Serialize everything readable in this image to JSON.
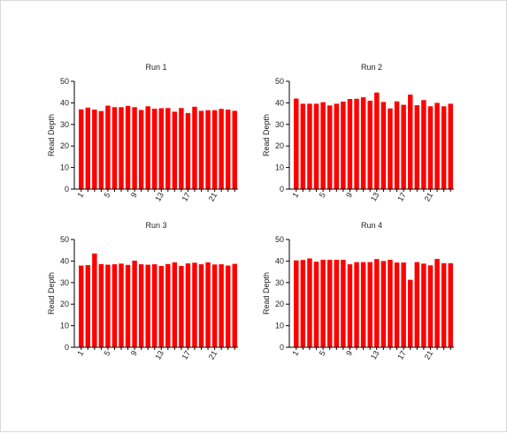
{
  "colors": {
    "bar": "#ff0000",
    "axis": "#000000",
    "background": "#ffffff",
    "border": "#d9d9d9"
  },
  "chart_data": [
    {
      "type": "bar",
      "title": "Run 1",
      "ylabel": "Read Depth",
      "ylim": [
        0,
        50
      ],
      "yticks": [
        0,
        10,
        20,
        30,
        40,
        50
      ],
      "x": [
        1,
        2,
        3,
        4,
        5,
        6,
        7,
        8,
        9,
        10,
        11,
        12,
        13,
        14,
        15,
        16,
        17,
        18,
        19,
        20,
        21,
        22,
        23,
        24
      ],
      "xtick_labels": [
        "1",
        "5",
        "9",
        "13",
        "17",
        "21"
      ],
      "values": [
        37.0,
        37.8,
        36.9,
        36.2,
        38.7,
        38.0,
        38.0,
        38.6,
        38.0,
        36.7,
        38.4,
        37.3,
        37.5,
        37.6,
        35.9,
        37.6,
        35.3,
        38.2,
        36.3,
        36.6,
        36.6,
        37.2,
        36.9,
        36.3
      ]
    },
    {
      "type": "bar",
      "title": "Run 2",
      "ylabel": "Read Depth",
      "ylim": [
        0,
        50
      ],
      "yticks": [
        0,
        10,
        20,
        30,
        40,
        50
      ],
      "x": [
        1,
        2,
        3,
        4,
        5,
        6,
        7,
        8,
        9,
        10,
        11,
        12,
        13,
        14,
        15,
        16,
        17,
        18,
        19,
        20,
        21,
        22,
        23,
        24
      ],
      "xtick_labels": [
        "1",
        "5",
        "9",
        "13",
        "17",
        "21"
      ],
      "values": [
        42.0,
        39.6,
        39.6,
        39.6,
        40.3,
        38.8,
        39.6,
        40.6,
        41.8,
        41.9,
        42.6,
        41.0,
        44.8,
        40.4,
        37.4,
        40.7,
        39.1,
        43.8,
        38.9,
        41.3,
        38.4,
        40.0,
        38.4,
        39.6
      ]
    },
    {
      "type": "bar",
      "title": "Run 3",
      "ylabel": "Read Depth",
      "ylim": [
        0,
        50
      ],
      "yticks": [
        0,
        10,
        20,
        30,
        40,
        50
      ],
      "x": [
        1,
        2,
        3,
        4,
        5,
        6,
        7,
        8,
        9,
        10,
        11,
        12,
        13,
        14,
        15,
        16,
        17,
        18,
        19,
        20,
        21,
        22,
        23,
        24
      ],
      "xtick_labels": [
        "1",
        "5",
        "9",
        "13",
        "17",
        "21"
      ],
      "values": [
        37.9,
        38.1,
        43.5,
        38.6,
        38.3,
        38.5,
        38.8,
        38.2,
        40.2,
        38.5,
        38.3,
        38.5,
        37.7,
        38.6,
        39.4,
        37.7,
        38.9,
        39.2,
        38.5,
        39.4,
        38.4,
        38.5,
        37.9,
        38.7
      ]
    },
    {
      "type": "bar",
      "title": "Run 4",
      "ylabel": "Read Depth",
      "ylim": [
        0,
        50
      ],
      "yticks": [
        0,
        10,
        20,
        30,
        40,
        50
      ],
      "x": [
        1,
        2,
        3,
        4,
        5,
        6,
        7,
        8,
        9,
        10,
        11,
        12,
        13,
        14,
        15,
        16,
        17,
        18,
        19,
        20,
        21,
        22,
        23,
        24
      ],
      "xtick_labels": [
        "1",
        "5",
        "9",
        "13",
        "17",
        "21"
      ],
      "values": [
        40.3,
        40.5,
        41.2,
        39.7,
        40.6,
        40.6,
        40.6,
        40.6,
        38.5,
        39.5,
        39.5,
        39.5,
        40.9,
        40.0,
        40.6,
        39.3,
        39.3,
        31.3,
        39.5,
        38.8,
        38.0,
        41.0,
        39.0,
        39.0
      ]
    }
  ]
}
